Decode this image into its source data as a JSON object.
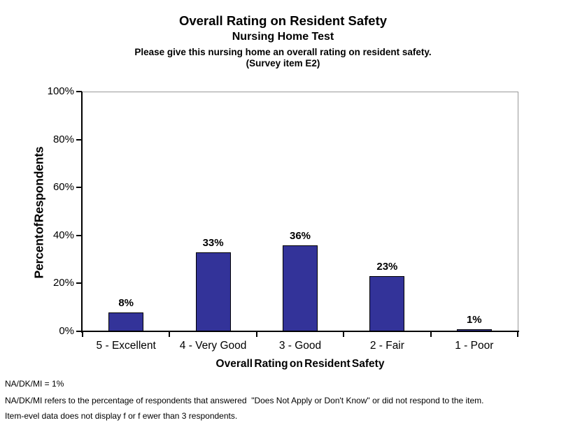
{
  "chart_data": {
    "type": "bar",
    "title": "Overall Rating on Resident Safety",
    "subtitle": "Nursing Home Test",
    "question_line1": "Please give this nursing home an overall rating on resident safety.",
    "question_line2": "(Survey item E2)",
    "categories": [
      "5 - Excellent",
      "4 - Very Good",
      "3 - Good",
      "2 - Fair",
      "1 - Poor"
    ],
    "values": [
      8,
      33,
      36,
      23,
      1
    ],
    "value_labels": [
      "8%",
      "33%",
      "36%",
      "23%",
      "1%"
    ],
    "xlabel": "Overall Rating on Resident Safety",
    "ylabel": "Percent of Respondents",
    "ylim": [
      0,
      100
    ],
    "yticks": [
      0,
      20,
      40,
      60,
      80,
      100
    ],
    "ytick_labels": [
      "0%",
      "20%",
      "40%",
      "60%",
      "80%",
      "100%"
    ],
    "grid": false,
    "legend": "none",
    "bar_color": "#333399",
    "bar_border_color": "#000000",
    "axis_color": "#000000",
    "plot_border_color": "#999999",
    "background": "#ffffff"
  },
  "footnotes": [
    "NA/DK/MI = 1%",
    "NA/DK/MI refers to the percentage of respondents that answered  \"Does Not Apply or Don't Know\" or did not respond to the item.",
    "Item-evel data does not display f or f ewer than 3 respondents."
  ]
}
